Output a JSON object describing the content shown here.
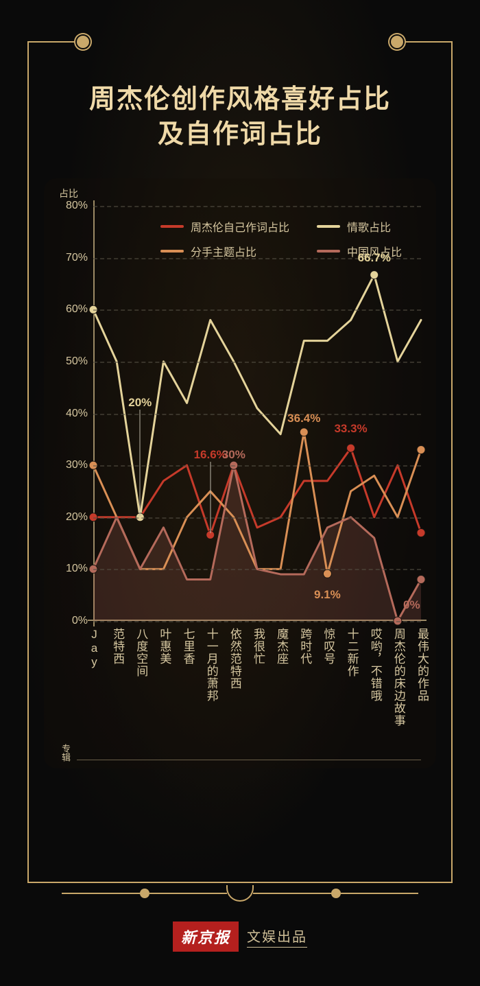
{
  "title_line1": "周杰伦创作风格喜好占比",
  "title_line2": "及自作词占比",
  "chart": {
    "type": "line",
    "y_axis_label": "占比",
    "x_axis_label": "专辑",
    "ylim": [
      0,
      80
    ],
    "ytick_step": 10,
    "ytick_suffix": "%",
    "grid_color": "#555044",
    "axis_color": "#9c8a65",
    "background_color": "rgba(20,15,10,0.35)",
    "label_color": "#d6c7a0",
    "label_fontsize": 16,
    "title_color": "#efd9a8",
    "title_fontsize": 38,
    "line_width": 3,
    "marker_radius": 6,
    "categories": [
      "Jay",
      "范特西",
      "八度空间",
      "叶惠美",
      "七里香",
      "十一月的萧邦",
      "依然范特西",
      "我很忙",
      "魔杰座",
      "跨时代",
      "惊叹号",
      "十二新作",
      "哎哟，不错哦",
      "周杰伦的床边故事",
      "最伟大的作品"
    ],
    "series": [
      {
        "key": "self_lyrics",
        "label": "周杰伦自己作词占比",
        "color": "#c63a2a",
        "values": [
          20,
          20,
          20,
          27,
          30,
          16.6,
          30,
          18,
          20,
          27,
          27,
          33.3,
          20,
          30,
          17
        ],
        "markers_at": [
          0,
          5,
          6,
          11,
          14
        ]
      },
      {
        "key": "love_songs",
        "label": "情歌占比",
        "color": "#e4d39a",
        "values": [
          60,
          50,
          20,
          50,
          42,
          58,
          50,
          41,
          36,
          54,
          54,
          58,
          66.7,
          50,
          58
        ],
        "markers_at": [
          0,
          2,
          12
        ]
      },
      {
        "key": "breakup",
        "label": "分手主题占比",
        "color": "#d98f55",
        "values": [
          30,
          20,
          10,
          10,
          20,
          25,
          20,
          10,
          10,
          36.4,
          9.1,
          25,
          28,
          20,
          33
        ],
        "markers_at": [
          0,
          9,
          10,
          14
        ]
      },
      {
        "key": "chinese_style",
        "label": "中国风占比",
        "color": "#b56a5b",
        "values": [
          10,
          20,
          10,
          18,
          8,
          8,
          30,
          10,
          9,
          9,
          18,
          20,
          16,
          0,
          8
        ],
        "markers_at": [
          0,
          6,
          13,
          14
        ],
        "fill": true,
        "fill_opacity": 0.22
      }
    ],
    "annotations": [
      {
        "text": "20%",
        "x_index": 2,
        "y_value": 42,
        "color": "#e4d39a",
        "leader_to_y": 20
      },
      {
        "text": "16.6%",
        "x_index": 5,
        "y_value": 32,
        "color": "#c63a2a",
        "leader_to_y": 16.6
      },
      {
        "text": "30%",
        "x_index": 6,
        "y_value": 32,
        "color": "#b56a5b"
      },
      {
        "text": "36.4%",
        "x_index": 9,
        "y_value": 39,
        "color": "#d98f55"
      },
      {
        "text": "9.1%",
        "x_index": 10,
        "y_value": 5,
        "color": "#d98f55"
      },
      {
        "text": "33.3%",
        "x_index": 11,
        "y_value": 37,
        "color": "#c63a2a"
      },
      {
        "text": "66.7%",
        "x_index": 12,
        "y_value": 70,
        "color": "#e4d39a"
      },
      {
        "text": "0%",
        "x_index": 13.6,
        "y_value": 3,
        "color": "#b56a5b"
      }
    ]
  },
  "credit": {
    "badge": "新京报",
    "sub": "文娱出品"
  },
  "frame_color": "#c9a86a"
}
